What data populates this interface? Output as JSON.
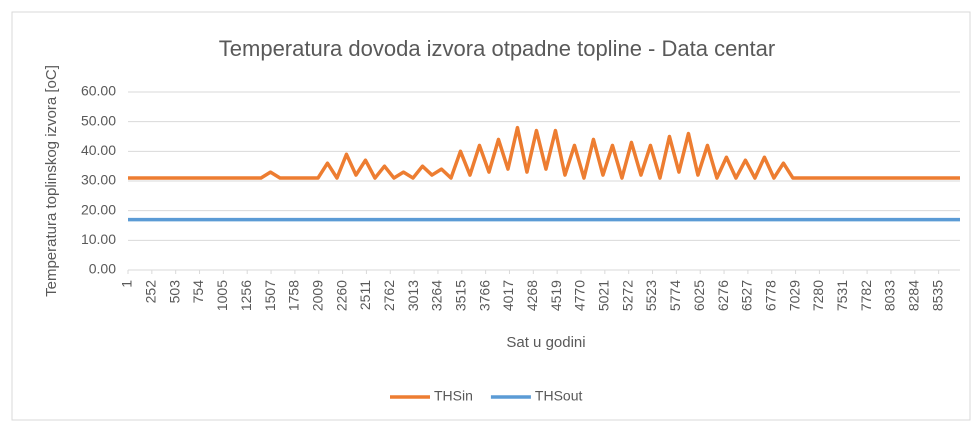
{
  "chart_data": {
    "type": "line",
    "title": "Temperatura  dovoda izvora otpadne topline - Data centar",
    "xlabel": "Sat u godini",
    "ylabel": "Temperatura toplinskog izvora [oC]",
    "x": [
      1,
      101,
      201,
      301,
      401,
      501,
      601,
      701,
      801,
      901,
      1001,
      1101,
      1201,
      1301,
      1401,
      1501,
      1601,
      1701,
      1801,
      1901,
      2001,
      2101,
      2201,
      2301,
      2401,
      2501,
      2601,
      2701,
      2801,
      2901,
      3001,
      3101,
      3201,
      3301,
      3401,
      3501,
      3601,
      3701,
      3801,
      3901,
      4001,
      4101,
      4201,
      4301,
      4401,
      4501,
      4601,
      4701,
      4801,
      4901,
      5001,
      5101,
      5201,
      5301,
      5401,
      5501,
      5601,
      5701,
      5801,
      5901,
      6001,
      6101,
      6201,
      6301,
      6401,
      6501,
      6601,
      6701,
      6801,
      6901,
      7001,
      7101,
      7201,
      7301,
      7401,
      7501,
      7601,
      7701,
      7801,
      7901,
      8001,
      8101,
      8201,
      8301,
      8401,
      8501,
      8601,
      8701,
      8760
    ],
    "series": [
      {
        "name": "THSin",
        "color": "#ed7d31",
        "values": [
          31,
          31,
          31,
          31,
          31,
          31,
          31,
          31,
          31,
          31,
          31,
          31,
          31,
          31,
          31,
          33,
          31,
          31,
          31,
          31,
          31,
          36,
          31,
          39,
          32,
          37,
          31,
          35,
          31,
          33,
          31,
          35,
          32,
          34,
          31,
          40,
          32,
          42,
          33,
          44,
          34,
          48,
          33,
          47,
          34,
          47,
          32,
          42,
          31,
          44,
          32,
          42,
          31,
          43,
          32,
          42,
          31,
          45,
          33,
          46,
          32,
          42,
          31,
          38,
          31,
          37,
          31,
          38,
          31,
          36,
          31,
          31,
          31,
          31,
          31,
          31,
          31,
          31,
          31,
          31,
          31,
          31,
          31,
          31,
          31,
          31,
          31,
          31,
          31
        ]
      },
      {
        "name": "THSout",
        "color": "#5b9bd5",
        "values": [
          17,
          17,
          17,
          17,
          17,
          17,
          17,
          17,
          17,
          17,
          17,
          17,
          17,
          17,
          17,
          17,
          17,
          17,
          17,
          17,
          17,
          17,
          17,
          17,
          17,
          17,
          17,
          17,
          17,
          17,
          17,
          17,
          17,
          17,
          17,
          17,
          17,
          17,
          17,
          17,
          17,
          17,
          17,
          17,
          17,
          17,
          17,
          17,
          17,
          17,
          17,
          17,
          17,
          17,
          17,
          17,
          17,
          17,
          17,
          17,
          17,
          17,
          17,
          17,
          17,
          17,
          17,
          17,
          17,
          17,
          17,
          17,
          17,
          17,
          17,
          17,
          17,
          17,
          17,
          17,
          17,
          17,
          17,
          17,
          17,
          17,
          17,
          17,
          17
        ]
      }
    ],
    "xlim": [
      1,
      8760
    ],
    "xticks": [
      1,
      252,
      503,
      754,
      1005,
      1256,
      1507,
      1758,
      2009,
      2260,
      2511,
      2762,
      3013,
      3264,
      3515,
      3766,
      4017,
      4268,
      4519,
      4770,
      5021,
      5272,
      5523,
      5774,
      6025,
      6276,
      6527,
      6778,
      7029,
      7280,
      7531,
      7782,
      8033,
      8284,
      8535
    ],
    "ylim": [
      0,
      60
    ],
    "yticks": [
      {
        "value": 0,
        "label": "0.00"
      },
      {
        "value": 10,
        "label": "10.00"
      },
      {
        "value": 20,
        "label": "20.00"
      },
      {
        "value": 30,
        "label": "30.00"
      },
      {
        "value": 40,
        "label": "40.00"
      },
      {
        "value": 50,
        "label": "50.00"
      },
      {
        "value": 60,
        "label": "60.00"
      }
    ],
    "grid": true,
    "legend": "bottom"
  }
}
